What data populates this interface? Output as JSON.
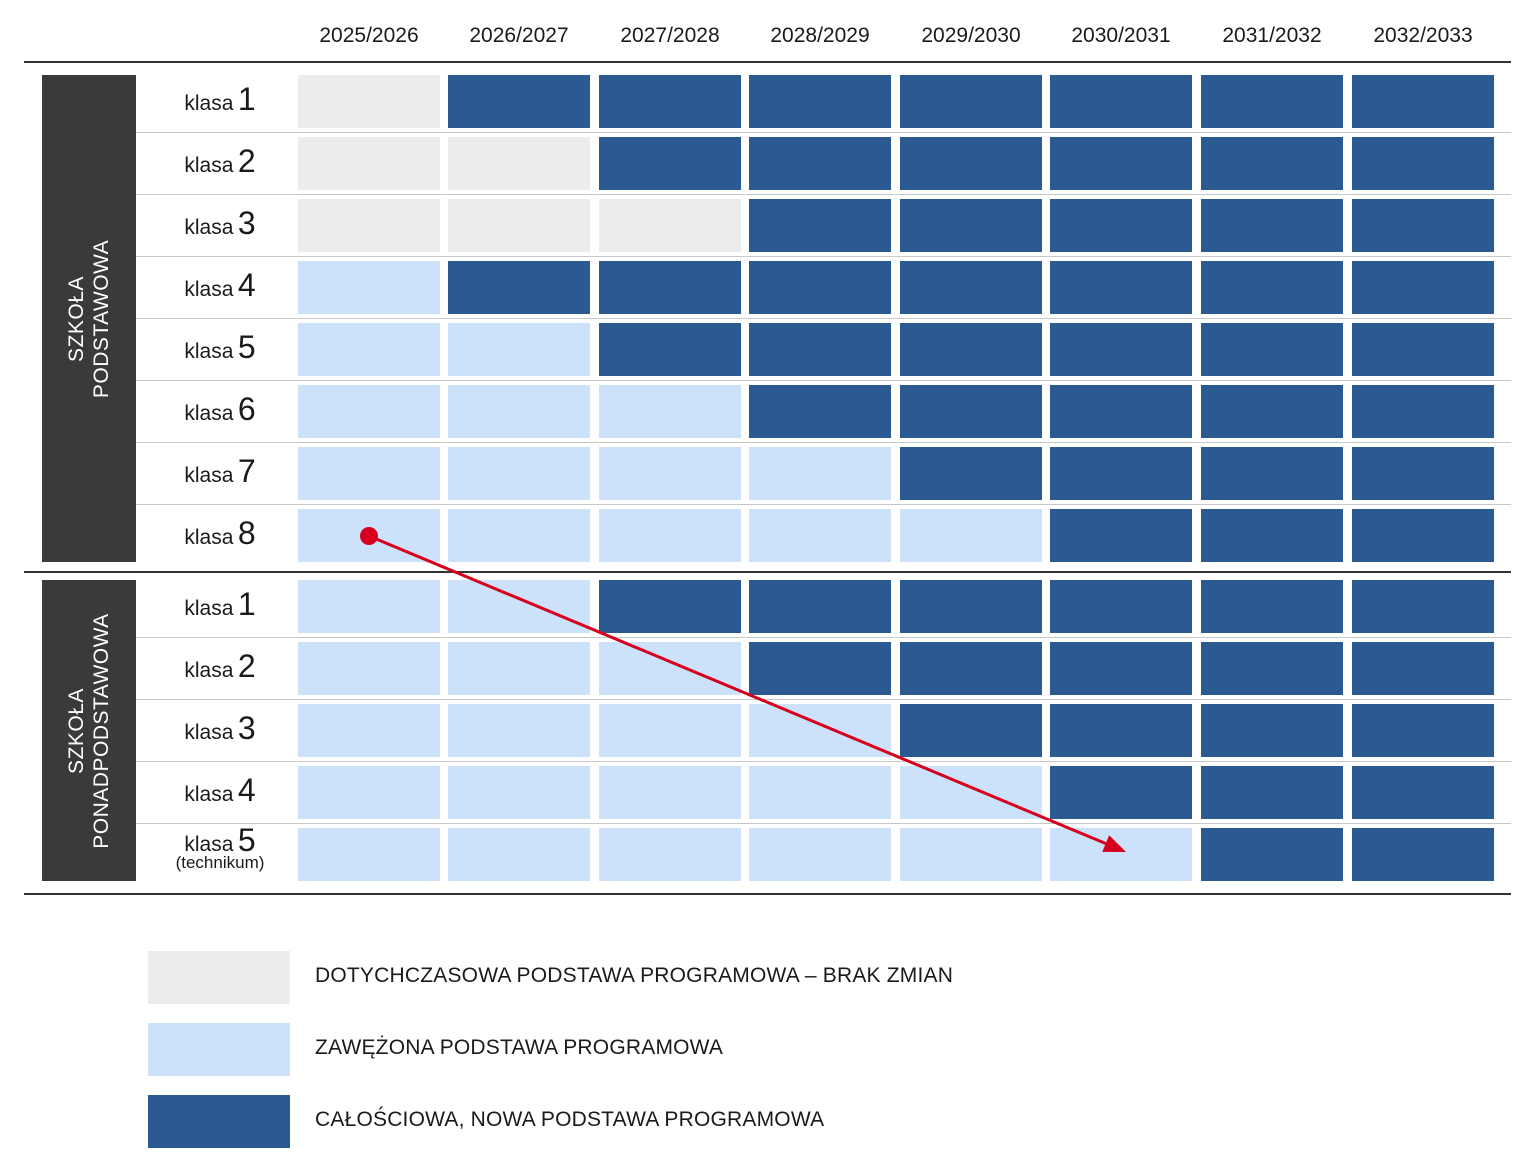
{
  "years": [
    "2025/2026",
    "2026/2027",
    "2027/2028",
    "2028/2029",
    "2029/2030",
    "2030/2031",
    "2031/2032",
    "2032/2033"
  ],
  "colors": {
    "old": "#ececec",
    "narrowed": "#cce2fb",
    "new": "#2b5a90",
    "arrow": "#d6001c"
  },
  "groups": [
    {
      "label_lines": [
        "SZKOŁA",
        "PODSTAWOWA"
      ],
      "rows": [
        {
          "word": "klasa",
          "number": "1",
          "sub": "",
          "cells": [
            "old",
            "new",
            "new",
            "new",
            "new",
            "new",
            "new",
            "new"
          ]
        },
        {
          "word": "klasa",
          "number": "2",
          "sub": "",
          "cells": [
            "old",
            "old",
            "new",
            "new",
            "new",
            "new",
            "new",
            "new"
          ]
        },
        {
          "word": "klasa",
          "number": "3",
          "sub": "",
          "cells": [
            "old",
            "old",
            "old",
            "new",
            "new",
            "new",
            "new",
            "new"
          ]
        },
        {
          "word": "klasa",
          "number": "4",
          "sub": "",
          "cells": [
            "narrowed",
            "new",
            "new",
            "new",
            "new",
            "new",
            "new",
            "new"
          ]
        },
        {
          "word": "klasa",
          "number": "5",
          "sub": "",
          "cells": [
            "narrowed",
            "narrowed",
            "new",
            "new",
            "new",
            "new",
            "new",
            "new"
          ]
        },
        {
          "word": "klasa",
          "number": "6",
          "sub": "",
          "cells": [
            "narrowed",
            "narrowed",
            "narrowed",
            "new",
            "new",
            "new",
            "new",
            "new"
          ]
        },
        {
          "word": "klasa",
          "number": "7",
          "sub": "",
          "cells": [
            "narrowed",
            "narrowed",
            "narrowed",
            "narrowed",
            "new",
            "new",
            "new",
            "new"
          ]
        },
        {
          "word": "klasa",
          "number": "8",
          "sub": "",
          "cells": [
            "narrowed",
            "narrowed",
            "narrowed",
            "narrowed",
            "narrowed",
            "new",
            "new",
            "new"
          ]
        }
      ]
    },
    {
      "label_lines": [
        "SZKOŁA",
        "PONADPODSTAWOWA"
      ],
      "rows": [
        {
          "word": "klasa",
          "number": "1",
          "sub": "",
          "cells": [
            "narrowed",
            "narrowed",
            "new",
            "new",
            "new",
            "new",
            "new",
            "new"
          ]
        },
        {
          "word": "klasa",
          "number": "2",
          "sub": "",
          "cells": [
            "narrowed",
            "narrowed",
            "narrowed",
            "new",
            "new",
            "new",
            "new",
            "new"
          ]
        },
        {
          "word": "klasa",
          "number": "3",
          "sub": "",
          "cells": [
            "narrowed",
            "narrowed",
            "narrowed",
            "narrowed",
            "new",
            "new",
            "new",
            "new"
          ]
        },
        {
          "word": "klasa",
          "number": "4",
          "sub": "",
          "cells": [
            "narrowed",
            "narrowed",
            "narrowed",
            "narrowed",
            "narrowed",
            "new",
            "new",
            "new"
          ]
        },
        {
          "word": "klasa",
          "number": "5",
          "sub": "(technikum)",
          "cells": [
            "narrowed",
            "narrowed",
            "narrowed",
            "narrowed",
            "narrowed",
            "narrowed",
            "new",
            "new"
          ]
        }
      ]
    }
  ],
  "arrow": {
    "from": {
      "group": 0,
      "row": 7,
      "year": 0
    },
    "to": {
      "group": 1,
      "row": 4,
      "year": 5
    }
  },
  "legend": [
    {
      "key": "old",
      "label": "DOTYCHCZASOWA PODSTAWA PROGRAMOWA – BRAK ZMIAN"
    },
    {
      "key": "narrowed",
      "label": "ZAWĘŻONA PODSTAWA PROGRAMOWA"
    },
    {
      "key": "new",
      "label": "CAŁOŚCIOWA, NOWA PODSTAWA PROGRAMOWA"
    }
  ]
}
